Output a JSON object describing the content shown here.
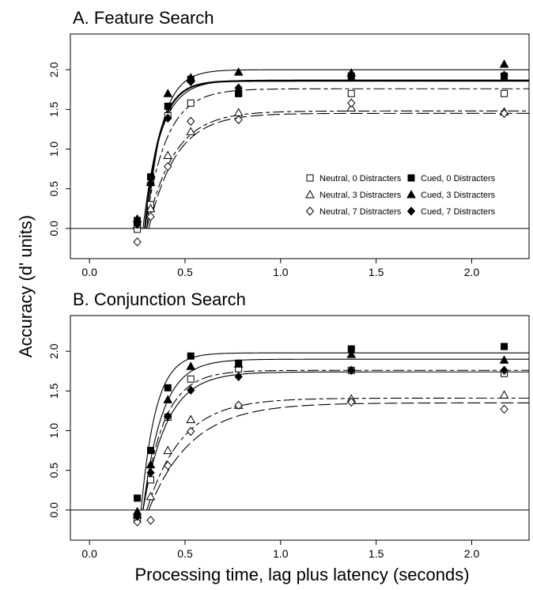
{
  "figure": {
    "ylabel": "Accuracy (d' units)",
    "xlabel": "Processing time, lag plus latency (seconds)"
  },
  "legend": [
    {
      "label": "Neutral, 0 Distracters",
      "marker": "open-square"
    },
    {
      "label": "Neutral, 3 Distracters",
      "marker": "open-triangle"
    },
    {
      "label": "Neutral, 7 Distracters",
      "marker": "open-diamond"
    },
    {
      "label": "Cued, 0 Distracters",
      "marker": "filled-square"
    },
    {
      "label": "Cued, 3 Distracters",
      "marker": "filled-triangle"
    },
    {
      "label": "Cued, 7 Distracters",
      "marker": "filled-diamond"
    }
  ],
  "chart_data": [
    {
      "type": "scatter",
      "title": "A. Feature Search",
      "xlim": [
        -0.1,
        2.3
      ],
      "ylim": [
        -0.38,
        2.45
      ],
      "xticks": [
        "0.0",
        "0.5",
        "1.0",
        "1.5",
        "2.0"
      ],
      "yticks": [
        "0.0",
        "0.5",
        "1.0",
        "1.5",
        "2.0"
      ],
      "x": [
        0.25,
        0.32,
        0.41,
        0.53,
        0.78,
        1.37,
        2.17
      ],
      "series": [
        {
          "name": "Neutral, 0 Distracters",
          "marker": "open-square",
          "values": [
            -0.01,
            0.3,
            1.42,
            1.58,
            1.7,
            1.7,
            1.7
          ],
          "fit": {
            "asymptote": 1.76,
            "rate": 9.0,
            "intercept": 0.29,
            "dash": "long-short"
          }
        },
        {
          "name": "Neutral, 3 Distracters",
          "marker": "open-triangle",
          "values": [
            0.05,
            0.25,
            0.92,
            1.22,
            1.46,
            1.52,
            1.47
          ],
          "fit": {
            "asymptote": 1.48,
            "rate": 7.0,
            "intercept": 0.3,
            "dash": "long-short"
          }
        },
        {
          "name": "Neutral, 7 Distracters",
          "marker": "open-diamond",
          "values": [
            -0.17,
            0.15,
            0.78,
            1.35,
            1.37,
            1.58,
            1.45
          ],
          "fit": {
            "asymptote": 1.45,
            "rate": 7.0,
            "intercept": 0.31,
            "dash": "long"
          }
        },
        {
          "name": "Cued, 0 Distracters",
          "marker": "filled-square",
          "values": [
            0.1,
            0.65,
            1.54,
            1.88,
            1.7,
            1.92,
            1.92
          ],
          "fit": {
            "asymptote": 1.86,
            "rate": 13.0,
            "intercept": 0.29,
            "dash": "solid-thick"
          }
        },
        {
          "name": "Cued, 3 Distracters",
          "marker": "filled-triangle",
          "values": [
            0.12,
            0.58,
            1.7,
            1.9,
            1.97,
            1.96,
            2.07
          ],
          "fit": {
            "asymptote": 2.0,
            "rate": 13.0,
            "intercept": 0.3,
            "dash": "solid"
          }
        },
        {
          "name": "Cued, 7 Distracters",
          "marker": "filled-diamond",
          "values": [
            0.05,
            0.57,
            1.39,
            1.85,
            1.77,
            1.92,
            1.93
          ],
          "fit": {
            "asymptote": 1.87,
            "rate": 11.0,
            "intercept": 0.28,
            "dash": "solid"
          }
        }
      ]
    },
    {
      "type": "scatter",
      "title": "B. Conjunction Search",
      "xlim": [
        -0.1,
        2.3
      ],
      "ylim": [
        -0.38,
        2.45
      ],
      "xticks": [
        "0.0",
        "0.5",
        "1.0",
        "1.5",
        "2.0"
      ],
      "yticks": [
        "0.0",
        "0.5",
        "1.0",
        "1.5",
        "2.0"
      ],
      "x": [
        0.25,
        0.32,
        0.41,
        0.53,
        0.78,
        1.37,
        2.17
      ],
      "series": [
        {
          "name": "Neutral, 0 Distracters",
          "marker": "open-square",
          "values": [
            -0.12,
            0.38,
            1.17,
            1.65,
            1.78,
            1.76,
            1.72
          ],
          "fit": {
            "asymptote": 1.76,
            "rate": 9.0,
            "intercept": 0.28,
            "dash": "long-short"
          }
        },
        {
          "name": "Neutral, 3 Distracters",
          "marker": "open-triangle",
          "values": [
            -0.06,
            0.17,
            0.75,
            1.14,
            1.32,
            1.4,
            1.45
          ],
          "fit": {
            "asymptote": 1.41,
            "rate": 5.5,
            "intercept": 0.3,
            "dash": "long-short"
          }
        },
        {
          "name": "Neutral, 7 Distracters",
          "marker": "open-diamond",
          "values": [
            -0.15,
            -0.13,
            0.56,
            0.99,
            1.32,
            1.36,
            1.27
          ],
          "fit": {
            "asymptote": 1.35,
            "rate": 4.5,
            "intercept": 0.31,
            "dash": "long"
          }
        },
        {
          "name": "Cued, 0 Distracters",
          "marker": "filled-square",
          "values": [
            0.15,
            0.75,
            1.54,
            1.94,
            1.85,
            2.03,
            2.06
          ],
          "fit": {
            "asymptote": 1.98,
            "rate": 13.0,
            "intercept": 0.27,
            "dash": "solid"
          }
        },
        {
          "name": "Cued, 3 Distracters",
          "marker": "filled-triangle",
          "values": [
            -0.02,
            0.57,
            1.39,
            1.81,
            1.84,
            1.96,
            1.89
          ],
          "fit": {
            "asymptote": 1.9,
            "rate": 10.0,
            "intercept": 0.28,
            "dash": "solid"
          }
        },
        {
          "name": "Cued, 7 Distracters",
          "marker": "filled-diamond",
          "values": [
            -0.08,
            0.47,
            1.18,
            1.51,
            1.68,
            1.76,
            1.76
          ],
          "fit": {
            "asymptote": 1.74,
            "rate": 8.0,
            "intercept": 0.28,
            "dash": "solid"
          }
        }
      ]
    }
  ]
}
